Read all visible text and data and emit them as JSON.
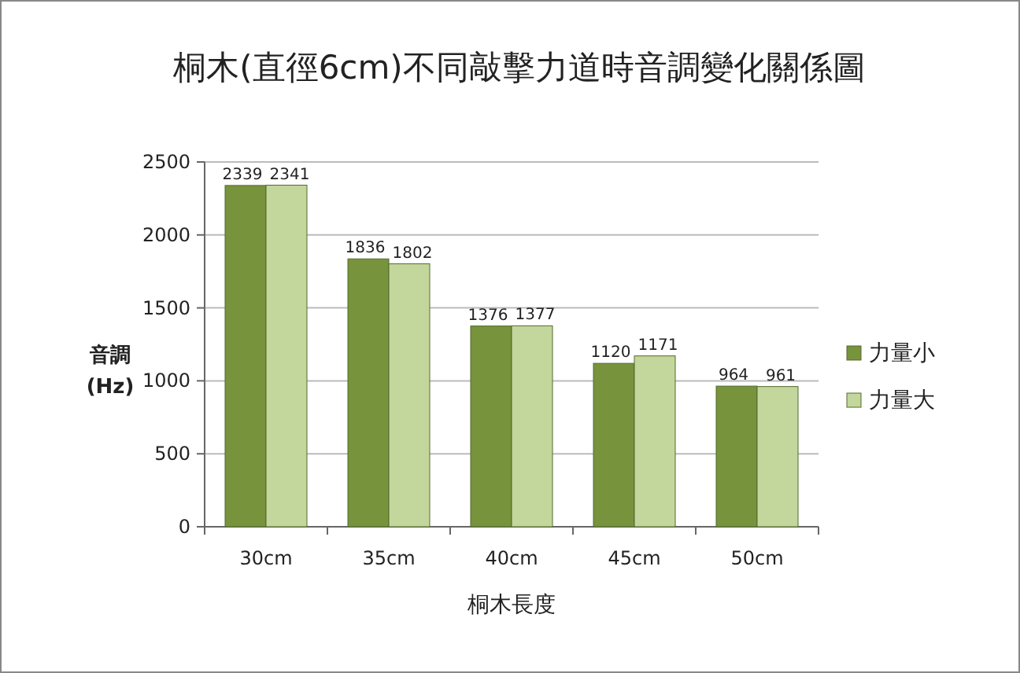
{
  "chart_data": {
    "type": "bar",
    "title": "桐木(直徑6cm)不同敲擊力道時音調變化關係圖",
    "xlabel": "桐木長度",
    "ylabel": "音調 (Hz)",
    "categories": [
      "30cm",
      "35cm",
      "40cm",
      "45cm",
      "50cm"
    ],
    "series": [
      {
        "name": "力量小",
        "color": "#77933c",
        "values": [
          2339,
          1836,
          1376,
          1120,
          964
        ]
      },
      {
        "name": "力量大",
        "color": "#c3d69b",
        "values": [
          2341,
          1802,
          1377,
          1171,
          961
        ]
      }
    ],
    "ylim": [
      0,
      2500
    ],
    "yticks": [
      0,
      500,
      1000,
      1500,
      2000,
      2500
    ],
    "grid": "y",
    "legend": "right",
    "data_labels": true
  }
}
